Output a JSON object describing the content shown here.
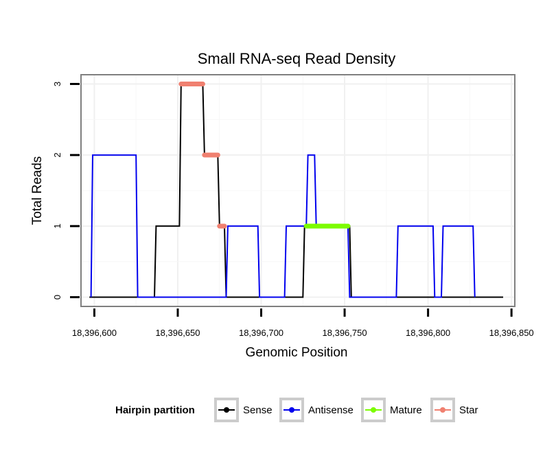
{
  "chart_data": {
    "type": "line",
    "title": "Small RNA-seq Read Density",
    "xlabel": "Genomic Position",
    "ylabel": "Total Reads",
    "xlim": [
      18396592,
      18396852
    ],
    "ylim": [
      -0.13,
      3.13
    ],
    "x_ticks": [
      18396600,
      18396650,
      18396700,
      18396750,
      18396800,
      18396850
    ],
    "x_tick_labels": [
      "18,396,600",
      "18,396,650",
      "18,396,700",
      "18,396,750",
      "18,396,800",
      "18,396,850"
    ],
    "y_ticks": [
      0,
      1,
      2,
      3
    ],
    "y_tick_labels": [
      "0",
      "1",
      "2",
      "3"
    ],
    "grid": true,
    "legend": {
      "title": "Hairpin partition",
      "position": "bottom",
      "entries": [
        "Sense",
        "Antisense",
        "Mature",
        "Star"
      ]
    },
    "series": [
      {
        "name": "Sense",
        "color": "#000000",
        "style": "line",
        "points": [
          [
            18396597,
            0
          ],
          [
            18396636,
            0
          ],
          [
            18396637,
            1
          ],
          [
            18396651,
            1
          ],
          [
            18396652,
            3
          ],
          [
            18396665,
            3
          ],
          [
            18396666,
            2
          ],
          [
            18396674,
            2
          ],
          [
            18396675,
            1
          ],
          [
            18396678,
            1
          ],
          [
            18396679,
            0
          ],
          [
            18396725,
            0
          ],
          [
            18396726,
            1
          ],
          [
            18396753,
            1
          ],
          [
            18396754,
            0
          ],
          [
            18396845,
            0
          ]
        ]
      },
      {
        "name": "Antisense",
        "color": "#0000ee",
        "style": "line",
        "points": [
          [
            18396598,
            0
          ],
          [
            18396599,
            2
          ],
          [
            18396625,
            2
          ],
          [
            18396626,
            0
          ],
          [
            18396679,
            0
          ],
          [
            18396680,
            1
          ],
          [
            18396698,
            1
          ],
          [
            18396699,
            0
          ],
          [
            18396714,
            0
          ],
          [
            18396715,
            1
          ],
          [
            18396727,
            1
          ],
          [
            18396728,
            2
          ],
          [
            18396732,
            2
          ],
          [
            18396733,
            1
          ],
          [
            18396752,
            1
          ],
          [
            18396753,
            0
          ],
          [
            18396781,
            0
          ],
          [
            18396782,
            1
          ],
          [
            18396803,
            1
          ],
          [
            18396804,
            0
          ],
          [
            18396808,
            0
          ],
          [
            18396809,
            1
          ],
          [
            18396827,
            1
          ],
          [
            18396828,
            0
          ]
        ]
      },
      {
        "name": "Mature",
        "color": "#7cfc00",
        "style": "segment",
        "segments": [
          {
            "x0": 18396727,
            "x1": 18396752,
            "y": 1
          }
        ]
      },
      {
        "name": "Star",
        "color": "#f08070",
        "style": "segment",
        "segments": [
          {
            "x0": 18396652,
            "x1": 18396665,
            "y": 3
          },
          {
            "x0": 18396666,
            "x1": 18396674,
            "y": 2
          },
          {
            "x0": 18396675,
            "x1": 18396678,
            "y": 1
          }
        ]
      }
    ]
  }
}
